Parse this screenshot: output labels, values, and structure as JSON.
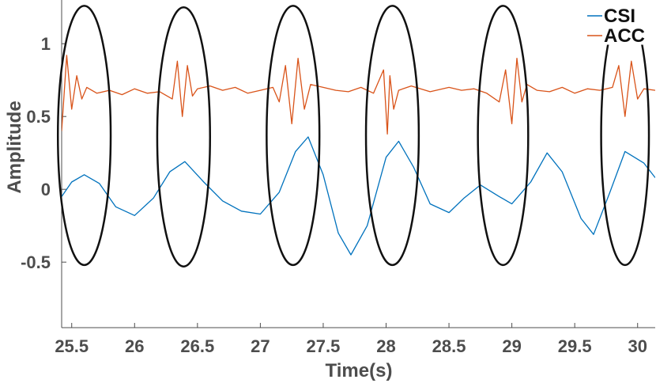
{
  "chart_data": {
    "type": "line",
    "title": "",
    "xlabel": "Time(s)",
    "ylabel": "Amplitude",
    "xlim": [
      25.42,
      30.14
    ],
    "ylim": [
      -0.95,
      1.3
    ],
    "xticks": [
      25.5,
      26,
      26.5,
      27,
      27.5,
      28,
      28.5,
      29,
      29.5,
      30
    ],
    "xtick_labels": [
      "25.5",
      "26",
      "26.5",
      "27",
      "27.5",
      "28",
      "28.5",
      "29",
      "29.5",
      "30"
    ],
    "yticks": [
      -0.5,
      0,
      0.5,
      1
    ],
    "ytick_labels": [
      "-0.5",
      "0",
      "0.5",
      "1"
    ],
    "grid": false,
    "legend_position": "top-right",
    "colors": {
      "CSI": "#0072BD",
      "ACC": "#D95319",
      "ellipse": "#111111",
      "axis": "#4d4d4d"
    },
    "series": [
      {
        "name": "CSI",
        "x": [
          25.42,
          25.5,
          25.6,
          25.72,
          25.85,
          26.0,
          26.15,
          26.28,
          26.4,
          26.55,
          26.7,
          26.85,
          27.0,
          27.15,
          27.28,
          27.38,
          27.5,
          27.62,
          27.72,
          27.85,
          28.0,
          28.1,
          28.22,
          28.35,
          28.5,
          28.62,
          28.75,
          28.9,
          29.0,
          29.15,
          29.28,
          29.4,
          29.55,
          29.65,
          29.78,
          29.9,
          30.05,
          30.14
        ],
        "y": [
          -0.05,
          0.05,
          0.1,
          0.04,
          -0.12,
          -0.18,
          -0.06,
          0.12,
          0.19,
          0.05,
          -0.08,
          -0.15,
          -0.17,
          -0.02,
          0.26,
          0.36,
          0.1,
          -0.3,
          -0.45,
          -0.25,
          0.22,
          0.33,
          0.15,
          -0.1,
          -0.16,
          -0.06,
          0.03,
          -0.05,
          -0.1,
          0.05,
          0.25,
          0.12,
          -0.2,
          -0.31,
          -0.02,
          0.26,
          0.18,
          0.08
        ]
      },
      {
        "name": "ACC",
        "x": [
          25.42,
          25.46,
          25.5,
          25.54,
          25.58,
          25.62,
          25.7,
          25.8,
          25.9,
          26.0,
          26.1,
          26.2,
          26.3,
          26.34,
          26.38,
          26.42,
          26.46,
          26.5,
          26.6,
          26.7,
          26.8,
          26.9,
          27.0,
          27.1,
          27.15,
          27.2,
          27.25,
          27.3,
          27.35,
          27.4,
          27.5,
          27.6,
          27.7,
          27.8,
          27.9,
          27.98,
          28.01,
          28.03,
          28.06,
          28.1,
          28.2,
          28.35,
          28.5,
          28.6,
          28.7,
          28.8,
          28.9,
          28.95,
          29.0,
          29.04,
          29.08,
          29.12,
          29.2,
          29.3,
          29.4,
          29.5,
          29.6,
          29.7,
          29.8,
          29.85,
          29.9,
          29.95,
          30.0,
          30.05,
          30.14
        ],
        "y": [
          0.4,
          0.92,
          0.55,
          0.78,
          0.62,
          0.7,
          0.66,
          0.68,
          0.65,
          0.69,
          0.66,
          0.67,
          0.62,
          0.88,
          0.5,
          0.85,
          0.64,
          0.69,
          0.71,
          0.68,
          0.7,
          0.66,
          0.68,
          0.7,
          0.6,
          0.85,
          0.45,
          0.9,
          0.55,
          0.72,
          0.7,
          0.68,
          0.67,
          0.7,
          0.66,
          0.82,
          0.38,
          0.78,
          0.55,
          0.68,
          0.71,
          0.67,
          0.7,
          0.68,
          0.69,
          0.66,
          0.6,
          0.82,
          0.45,
          0.9,
          0.6,
          0.72,
          0.68,
          0.67,
          0.7,
          0.66,
          0.69,
          0.68,
          0.7,
          0.85,
          0.5,
          0.88,
          0.62,
          0.69,
          0.68
        ]
      }
    ],
    "annotations": [
      {
        "type": "ellipse",
        "x_center": 25.6,
        "y_center": 0.37,
        "x_halfwidth": 0.21,
        "y_halfwidth": 0.89
      },
      {
        "type": "ellipse",
        "x_center": 26.39,
        "y_center": 0.36,
        "x_halfwidth": 0.21,
        "y_halfwidth": 0.89
      },
      {
        "type": "ellipse",
        "x_center": 27.26,
        "y_center": 0.37,
        "x_halfwidth": 0.21,
        "y_halfwidth": 0.89
      },
      {
        "type": "ellipse",
        "x_center": 28.05,
        "y_center": 0.37,
        "x_halfwidth": 0.21,
        "y_halfwidth": 0.89
      },
      {
        "type": "ellipse",
        "x_center": 28.93,
        "y_center": 0.37,
        "x_halfwidth": 0.2,
        "y_halfwidth": 0.89
      },
      {
        "type": "ellipse",
        "x_center": 29.9,
        "y_center": 0.37,
        "x_halfwidth": 0.19,
        "y_halfwidth": 0.89
      }
    ]
  }
}
